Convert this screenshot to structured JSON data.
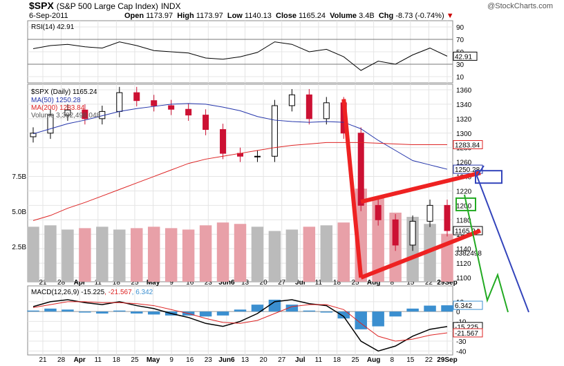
{
  "header": {
    "symbol": "$SPX",
    "name": "(S&P 500 Large Cap Index)",
    "exchange": "INDX",
    "date": "6-Sep-2011",
    "open_label": "Open",
    "open": "1173.97",
    "high_label": "High",
    "high": "1173.97",
    "low_label": "Low",
    "low": "1140.13",
    "close_label": "Close",
    "close": "1165.24",
    "volume_label": "Volume",
    "volume": "3.4B",
    "chg_label": "Chg",
    "chg": "-8.73 (-0.74%)",
    "credit": "@StockCharts.com"
  },
  "colors": {
    "up": "#000000",
    "down": "#cc1133",
    "ma50": "#2233aa",
    "ma200": "#dd2222",
    "rsi": "#000000",
    "volume_up": "#bbbbbb",
    "volume_down": "#e8a0a8",
    "macd_hist": "#3b8fd0",
    "annot_red": "#ee2222",
    "annot_blue": "#3344bb",
    "annot_green": "#22aa22"
  },
  "chart_data": {
    "type": "candlestick",
    "x": [
      "Mar 21",
      "Mar 28",
      "Apr 4",
      "Apr 11",
      "Apr 18",
      "Apr 25",
      "May 2",
      "May 9",
      "May 16",
      "May 23",
      "May 31",
      "Jun 6",
      "Jun 13",
      "Jun 20",
      "Jun 27",
      "Jul 4",
      "Jul 11",
      "Jul 18",
      "Jul 25",
      "Aug 1",
      "Aug 8",
      "Aug 15",
      "Aug 22",
      "Aug 29",
      "Sep 6"
    ],
    "x_tick_labels": [
      "21",
      "28",
      "Apr",
      "11",
      "18",
      "25",
      "May",
      "9",
      "16",
      "23",
      "Jun6",
      "13",
      "20",
      "27",
      "Jul",
      "11",
      "18",
      "25",
      "Aug",
      "8",
      "15",
      "22",
      "29Sep"
    ],
    "close": [
      1300,
      1325,
      1332,
      1320,
      1330,
      1356,
      1345,
      1338,
      1333,
      1325,
      1305,
      1272,
      1268,
      1268,
      1338,
      1353,
      1320,
      1342,
      1300,
      1200,
      1180,
      1145,
      1178,
      1200,
      1165
    ],
    "ma50": [
      1299,
      1306,
      1313,
      1318,
      1324,
      1330,
      1334,
      1337,
      1340,
      1341,
      1340,
      1336,
      1331,
      1323,
      1318,
      1316,
      1315,
      1316,
      1315,
      1306,
      1290,
      1276,
      1262,
      1256,
      1250
    ],
    "ma200": [
      1179,
      1186,
      1196,
      1204,
      1213,
      1222,
      1231,
      1240,
      1249,
      1258,
      1264,
      1268,
      1272,
      1276,
      1280,
      1283,
      1285,
      1287,
      1287,
      1287,
      1286,
      1285,
      1284,
      1284,
      1284
    ],
    "volume_billions": [
      3.9,
      4.0,
      3.7,
      3.8,
      3.9,
      3.7,
      3.8,
      3.9,
      3.8,
      3.7,
      4.0,
      4.2,
      4.1,
      3.9,
      3.6,
      3.7,
      3.9,
      4.0,
      4.2,
      6.6,
      6.0,
      4.9,
      4.6,
      4.1,
      3.4
    ],
    "price_ylim": [
      1100,
      1360
    ],
    "price_ticks": [
      1100,
      1120,
      1140,
      1160,
      1180,
      1200,
      1220,
      1240,
      1260,
      1280,
      1300,
      1320,
      1340,
      1360
    ],
    "volume_ticks": [
      "2.5B",
      "5.0B",
      "7.5B"
    ],
    "rsi": [
      55,
      60,
      62,
      58,
      56,
      66,
      60,
      52,
      50,
      48,
      40,
      38,
      42,
      49,
      66,
      62,
      50,
      54,
      42,
      20,
      35,
      30,
      45,
      56,
      42.91
    ],
    "rsi_ticks": [
      10,
      30,
      50,
      70,
      90
    ],
    "macd": [
      5,
      10,
      12,
      9,
      7,
      10,
      6,
      3,
      -2,
      -6,
      -12,
      -15,
      -10,
      -2,
      10,
      12,
      8,
      6,
      -5,
      -30,
      -40,
      -35,
      -25,
      -18,
      -15.225
    ],
    "macd_signal": [
      4,
      7,
      10,
      10,
      9,
      9,
      8,
      6,
      2,
      -2,
      -7,
      -11,
      -12,
      -9,
      -2,
      5,
      7,
      7,
      2,
      -12,
      -25,
      -30,
      -28,
      -24,
      -21.567
    ],
    "macd_ticks": [
      -40,
      -30,
      -20,
      -10,
      0,
      10
    ],
    "legend": {
      "rsi": "RSI(14) 42.91",
      "price": "$SPX (Daily) 1165.24",
      "ma50": "MA(50) 1250.28",
      "ma200": "MA(200) 1283.84",
      "volume": "Volume 3,382,498,048",
      "macd_prefix": "MACD(12,26,9)",
      "macd_val": "-15.225",
      "macd_sig": "-21.567",
      "macd_hist": "6.342"
    },
    "right_labels": {
      "rsi": "42.91",
      "ma200": "1283.84",
      "ma50": "1250.28",
      "close": "1165.24",
      "volume": "3382498",
      "macd_hist": "6.342",
      "macd": "-15.225",
      "signal": "-21.567"
    }
  }
}
